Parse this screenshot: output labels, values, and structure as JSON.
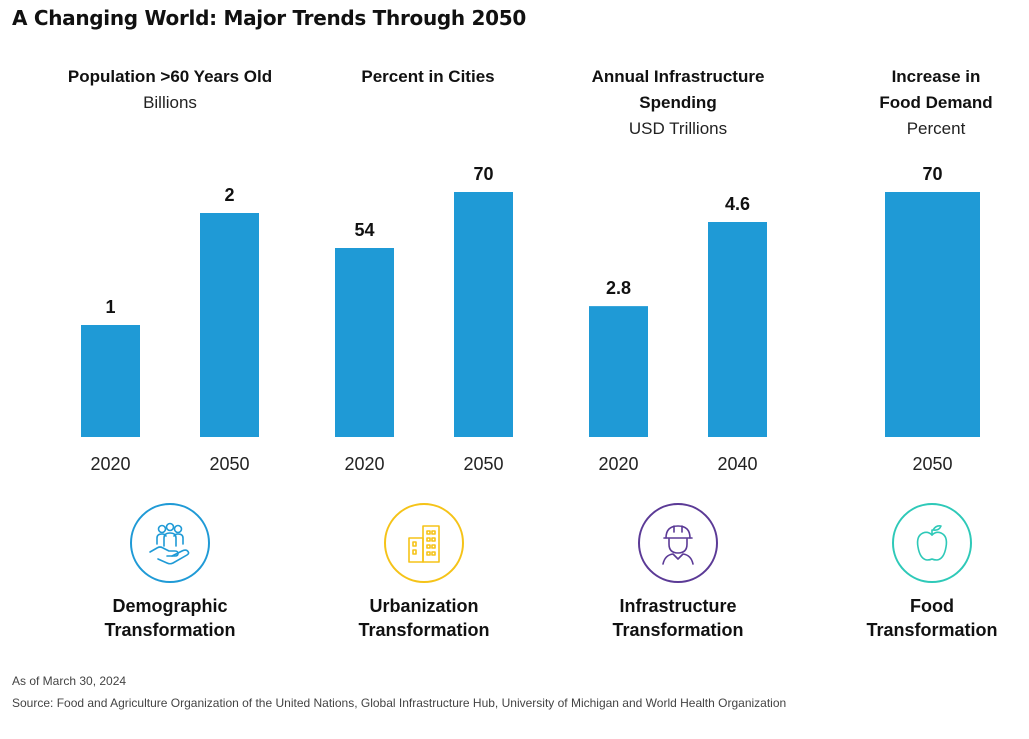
{
  "title": "A Changing World: Major Trends Through 2050",
  "panels": [
    {
      "head": [
        "Population >60 Years Old"
      ],
      "sub": "Billions"
    },
    {
      "head": [
        "Percent in Cities"
      ],
      "sub": ""
    },
    {
      "head": [
        "Annual Infrastructure",
        "Spending"
      ],
      "sub": "USD Trillions"
    },
    {
      "head": [
        "Increase in",
        "Food Demand"
      ],
      "sub": "Percent"
    }
  ],
  "chart_data": [
    {
      "type": "bar",
      "title": "Population >60 Years Old",
      "ylabel": "Billions",
      "categories": [
        "2020",
        "2050"
      ],
      "values": [
        1,
        2
      ],
      "labels": [
        "1",
        "2"
      ]
    },
    {
      "type": "bar",
      "title": "Percent in Cities",
      "ylabel": "",
      "categories": [
        "2020",
        "2050"
      ],
      "values": [
        54,
        70
      ],
      "labels": [
        "54",
        "70"
      ]
    },
    {
      "type": "bar",
      "title": "Annual Infrastructure Spending",
      "ylabel": "USD Trillions",
      "categories": [
        "2020",
        "2040"
      ],
      "values": [
        2.8,
        4.6
      ],
      "labels": [
        "2.8",
        "4.6"
      ]
    },
    {
      "type": "bar",
      "title": "Increase in Food Demand",
      "ylabel": "Percent",
      "categories": [
        "2050"
      ],
      "values": [
        70
      ],
      "labels": [
        "70"
      ]
    }
  ],
  "themes": [
    {
      "line1": "Demographic",
      "line2": "Transformation",
      "icon": "hand-people-icon",
      "color": "#1f9ad6"
    },
    {
      "line1": "Urbanization",
      "line2": "Transformation",
      "icon": "buildings-icon",
      "color": "#f5c318"
    },
    {
      "line1": "Infrastructure",
      "line2": "Transformation",
      "icon": "hard-hat-worker-icon",
      "color": "#5b3a96"
    },
    {
      "line1": "Food",
      "line2": "Transformation",
      "icon": "apple-icon",
      "color": "#2ec9b8"
    }
  ],
  "colors": {
    "bar": "#1f9ad6"
  },
  "footer": {
    "date": "As of March 30, 2024",
    "source": "Source: Food and Agriculture Organization of the United Nations, Global Infrastructure Hub, University of Michigan and World Health Organization"
  }
}
